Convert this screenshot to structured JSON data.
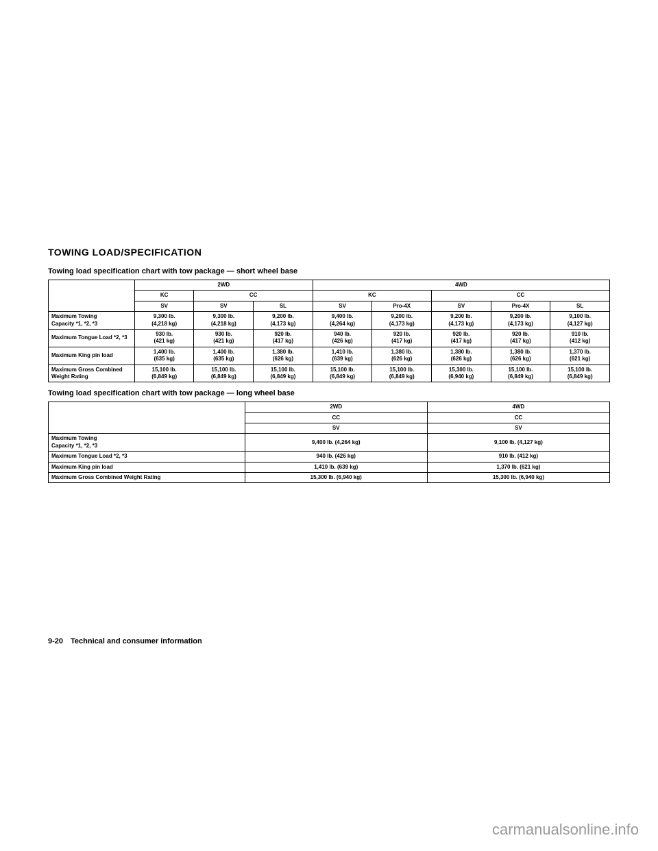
{
  "page": {
    "sectionTitle": "TOWING LOAD/SPECIFICATION",
    "footer": "9-20 Technical and consumer information",
    "watermark": "carmanualsonline.info"
  },
  "table1": {
    "caption": "Towing load specification chart with tow package — short wheel base",
    "drive": [
      "2WD",
      "4WD"
    ],
    "cab": [
      "KC",
      "CC",
      "KC",
      "CC"
    ],
    "trim": [
      "SV",
      "SV",
      "SL",
      "SV",
      "Pro-4X",
      "SV",
      "Pro-4X",
      "SL"
    ],
    "rows": [
      {
        "label": "Maximum Towing\nCapacity *1, *2, *3",
        "values": [
          "9,300 lb.\n(4,218 kg)",
          "9,300 lb.\n(4,218 kg)",
          "9,200 lb.\n(4,173 kg)",
          "9,400 lb.\n(4,264 kg)",
          "9,200 lb.\n(4,173 kg)",
          "9,200 lb.\n(4,173 kg)",
          "9,200 lb.\n(4,173 kg)",
          "9,100 lb.\n(4,127 kg)"
        ]
      },
      {
        "label": "Maximum Tongue Load *2, *3",
        "values": [
          "930 lb.\n(421 kg)",
          "930 lb.\n(421 kg)",
          "920 lb.\n(417 kg)",
          "940 lb.\n(426 kg)",
          "920 lb.\n(417 kg)",
          "920 lb.\n(417 kg)",
          "920 lb.\n(417 kg)",
          "910 lb.\n(412 kg)"
        ]
      },
      {
        "label": "Maximum King pin load",
        "values": [
          "1,400 lb.\n(635 kg)",
          "1,400 lb.\n(635 kg)",
          "1,380 lb.\n(626 kg)",
          "1,410 lb.\n(639 kg)",
          "1,380 lb.\n(626 kg)",
          "1,380 lb.\n(626 kg)",
          "1,380 lb.\n(626 kg)",
          "1,370 lb.\n(621 kg)"
        ]
      },
      {
        "label": "Maximum Gross Combined\nWeight Rating",
        "values": [
          "15,100 lb.\n(6,849 kg)",
          "15,100 lb.\n(6,849 kg)",
          "15,100 lb.\n(6,849 kg)",
          "15,100 lb.\n(6,849 kg)",
          "15,100 lb.\n(6,849 kg)",
          "15,300 lb.\n(6,940 kg)",
          "15,100 lb.\n(6,849 kg)",
          "15,100 lb.\n(6,849 kg)"
        ]
      }
    ]
  },
  "table2": {
    "caption": "Towing load specification chart with tow package — long wheel base",
    "drive": [
      "2WD",
      "4WD"
    ],
    "cab": [
      "CC",
      "CC"
    ],
    "trim": [
      "SV",
      "SV"
    ],
    "rows": [
      {
        "label": "Maximum Towing\nCapacity *1, *2, *3",
        "values": [
          "9,400 lb. (4,264 kg)",
          "9,100 lb. (4,127 kg)"
        ]
      },
      {
        "label": "Maximum Tongue Load *2, *3",
        "values": [
          "940 lb. (426 kg)",
          "910 lb. (412 kg)"
        ]
      },
      {
        "label": "Maximum King pin load",
        "values": [
          "1,410 lb. (639 kg)",
          "1,370 lb. (621 kg)"
        ]
      },
      {
        "label": "Maximum Gross Combined Weight Rating",
        "values": [
          "15,300 lb. (6,940 kg)",
          "15,300 lb. (6,940 kg)"
        ]
      }
    ]
  }
}
